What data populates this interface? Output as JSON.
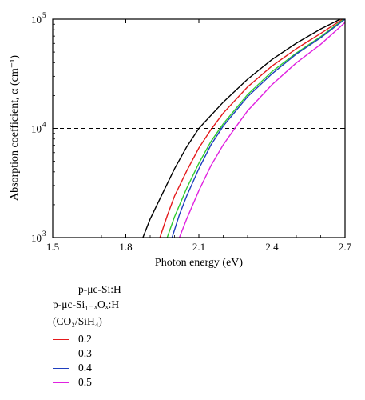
{
  "chart_data": {
    "type": "line",
    "xlabel": "Photon energy (eV)",
    "ylabel": "Absorption coefficient, α (cm⁻¹)",
    "xlim": [
      1.5,
      2.7
    ],
    "ylim": [
      1000,
      100000
    ],
    "yscale": "log",
    "x_ticks": [
      "1.5",
      "1.8",
      "2.1",
      "2.4",
      "2.7"
    ],
    "y_ticks": [
      {
        "base": "10",
        "exp": "3"
      },
      {
        "base": "10",
        "exp": "4"
      },
      {
        "base": "10",
        "exp": "5"
      }
    ],
    "reference_line": {
      "y": 10000,
      "style": "dashed"
    },
    "grid": false,
    "series": [
      {
        "name": "p-μc-Si:H",
        "color": "#000000",
        "x": [
          1.87,
          1.9,
          1.95,
          2.0,
          2.05,
          2.1,
          2.2,
          2.3,
          2.4,
          2.5,
          2.6,
          2.68
        ],
        "y": [
          1000,
          1480,
          2510,
          4270,
          6760,
          10000,
          17400,
          28200,
          42700,
          60300,
          81300,
          100000
        ]
      },
      {
        "name": "0.2",
        "color": "#e41a1c",
        "x": [
          1.94,
          1.97,
          2.0,
          2.05,
          2.1,
          2.15,
          2.2,
          2.3,
          2.4,
          2.5,
          2.6,
          2.69
        ],
        "y": [
          1000,
          1580,
          2400,
          4070,
          6610,
          9770,
          13800,
          24000,
          37200,
          53700,
          74100,
          100000
        ]
      },
      {
        "name": "0.3",
        "color": "#2ecc2e",
        "x": [
          1.97,
          2.0,
          2.05,
          2.1,
          2.15,
          2.2,
          2.3,
          2.4,
          2.5,
          2.6,
          2.695
        ],
        "y": [
          1000,
          1550,
          2820,
          4790,
          7590,
          11000,
          20400,
          33100,
          49000,
          69200,
          100000
        ]
      },
      {
        "name": "0.4",
        "color": "#1f3fbf",
        "x": [
          1.99,
          2.02,
          2.05,
          2.1,
          2.15,
          2.2,
          2.3,
          2.4,
          2.5,
          2.6,
          2.7
        ],
        "y": [
          1000,
          1620,
          2400,
          4270,
          7080,
          10500,
          19500,
          31600,
          47900,
          67600,
          100000
        ]
      },
      {
        "name": "0.5",
        "color": "#e022e0",
        "x": [
          2.02,
          2.05,
          2.1,
          2.15,
          2.2,
          2.25,
          2.3,
          2.4,
          2.5,
          2.6,
          2.7
        ],
        "y": [
          1000,
          1480,
          2690,
          4570,
          7080,
          10200,
          14500,
          25100,
          39800,
          58900,
          93300
        ]
      }
    ]
  },
  "legend": {
    "item1_label": "p-μc-Si:H",
    "group_label": "p-μc-Si₁₋ₓOₓ:H",
    "ratio_label": "(CO₂/SiH₄)",
    "items": [
      {
        "label": "0.2",
        "color": "#e41a1c"
      },
      {
        "label": "0.3",
        "color": "#2ecc2e"
      },
      {
        "label": "0.4",
        "color": "#1f3fbf"
      },
      {
        "label": "0.5",
        "color": "#e022e0"
      }
    ]
  }
}
